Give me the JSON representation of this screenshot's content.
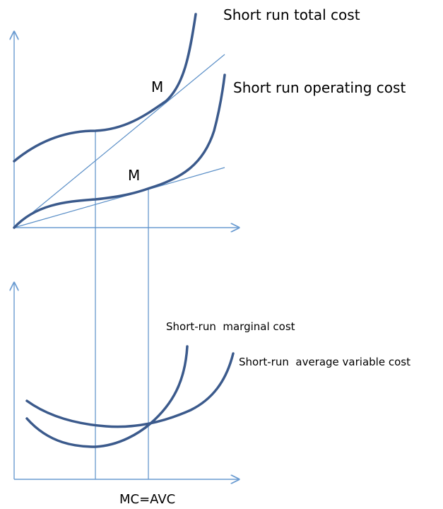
{
  "top_panel": {
    "curves": [
      {
        "label": "Short run total cost"
      },
      {
        "label": "Short run operating cost"
      }
    ],
    "points": [
      {
        "label": "M"
      },
      {
        "label": "M"
      }
    ]
  },
  "bottom_panel": {
    "curves": [
      {
        "label": "Short-run  marginal cost"
      },
      {
        "label": "Short-run  average variable cost"
      }
    ]
  },
  "footer": "MC=AVC"
}
